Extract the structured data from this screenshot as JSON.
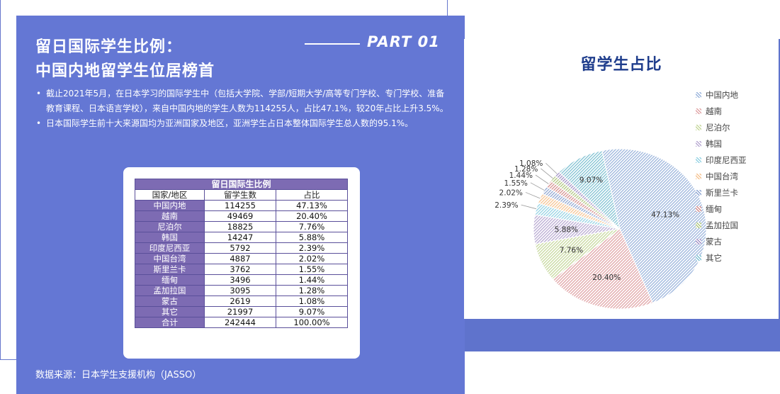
{
  "left_panel": {
    "title_line1": "留日国际学生比例：",
    "title_line2": "中国内地留学生位居榜首",
    "part_label": "PART 01",
    "bullets": [
      "截止2021年5月，在日本学习的国际学生中（包括大学院、学部/短期大学/高等专门学校、专门学校、准备教育课程、日本语言学校），来自中国内地的学生人数为114255人，占比47.1%，较20年占比上升3.5%。",
      "日本国际学生前十大来源国均为亚洲国家及地区，亚洲学生占日本整体国际学生总人数的95.1%。"
    ],
    "table": {
      "caption": "留日国际生比例",
      "headers": [
        "国家/地区",
        "留学生数",
        "占比"
      ],
      "rows": [
        [
          "中国内地",
          "114255",
          "47.13%"
        ],
        [
          "越南",
          "49469",
          "20.40%"
        ],
        [
          "尼泊尔",
          "18825",
          "7.76%"
        ],
        [
          "韩国",
          "14247",
          "5.88%"
        ],
        [
          "印度尼西亚",
          "5792",
          "2.39%"
        ],
        [
          "中国台湾",
          "4887",
          "2.02%"
        ],
        [
          "斯里兰卡",
          "3762",
          "1.55%"
        ],
        [
          "缅甸",
          "3496",
          "1.44%"
        ],
        [
          "孟加拉国",
          "3095",
          "1.28%"
        ],
        [
          "蒙古",
          "2619",
          "1.08%"
        ],
        [
          "其它",
          "21997",
          "9.07%"
        ],
        [
          "合计",
          "242444",
          "100.00%"
        ]
      ]
    },
    "source": "数据来源：日本学生支援机构（JASSO）"
  },
  "colors": {
    "panel": "#6477d4",
    "title_blue": "#1f3d8c",
    "table_header": "#7d6bb3"
  },
  "chart_data": {
    "type": "pie",
    "title": "留学生占比",
    "legend_position": "right",
    "slices": [
      {
        "label": "中国内地",
        "value": 47.13,
        "display": "47.13%",
        "color": "#9ab4dc"
      },
      {
        "label": "越南",
        "value": 20.4,
        "display": "20.40%",
        "color": "#e0a3a5"
      },
      {
        "label": "尼泊尔",
        "value": 7.76,
        "display": "7.76%",
        "color": "#c6d89c"
      },
      {
        "label": "韩国",
        "value": 5.88,
        "display": "5.88%",
        "color": "#b8a9d2"
      },
      {
        "label": "印度尼西亚",
        "value": 2.39,
        "display": "2.39%",
        "color": "#93d2e3"
      },
      {
        "label": "中国台湾",
        "value": 2.02,
        "display": "2.02%",
        "color": "#f6c391"
      },
      {
        "label": "斯里兰卡",
        "value": 1.55,
        "display": "1.55%",
        "color": "#8fa6d2"
      },
      {
        "label": "缅甸",
        "value": 1.44,
        "display": "1.44%",
        "color": "#d58e8c"
      },
      {
        "label": "孟加拉国",
        "value": 1.28,
        "display": "1.28%",
        "color": "#aec67c"
      },
      {
        "label": "蒙古",
        "value": 1.08,
        "display": "1.08%",
        "color": "#a08fc4"
      },
      {
        "label": "其它",
        "value": 9.07,
        "display": "9.07%",
        "color": "#7fc1d2"
      }
    ]
  }
}
